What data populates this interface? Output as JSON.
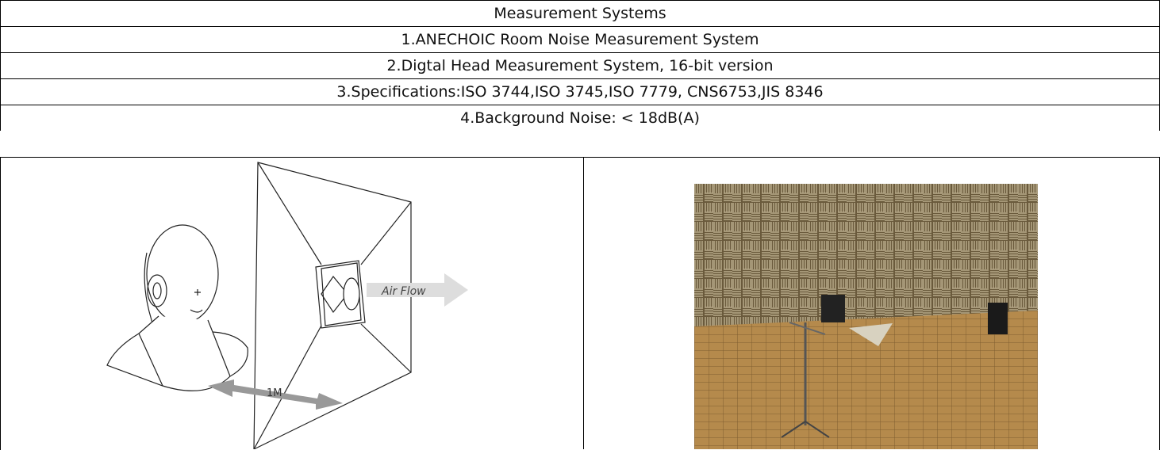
{
  "table": {
    "rows": [
      "Measurement Systems",
      "1.ANECHOIC Room Noise Measurement System",
      "2.Digtal Head Measurement System, 16-bit version",
      "3.Specifications:ISO 3744,ISO 3745,ISO 7779, CNS6753,JIS 8346",
      "4.Background Noise: < 18dB(A)"
    ]
  },
  "diagram": {
    "airflow_label": "Air Flow",
    "distance_label": "1M"
  }
}
